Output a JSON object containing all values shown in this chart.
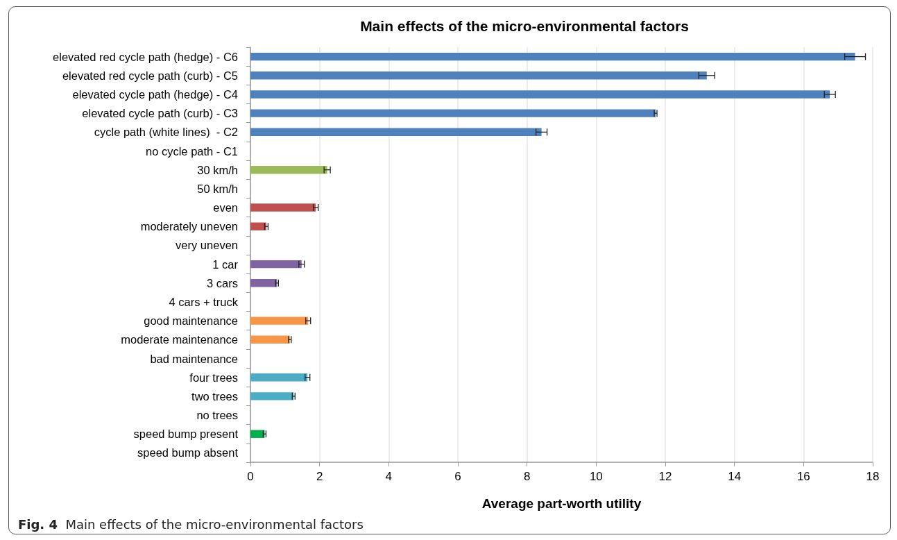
{
  "chart_data": {
    "type": "bar",
    "orientation": "horizontal",
    "title": "Main effects of the micro-environmental factors",
    "xlabel": "Average part-worth utility",
    "annotations": [
      "Fig. 4  Main effects of the micro-environmental factors"
    ],
    "categories": [
      "elevated red cycle path (hedge) - C6",
      "elevated red cycle path (curb) - C5",
      "elevated cycle path (hedge) - C4",
      "elevated cycle path (curb) - C3",
      "cycle path (white lines)  - C2",
      "no cycle path - C1",
      "30 km/h",
      "50 km/h",
      "even",
      "moderately uneven",
      "very uneven",
      "1 car",
      "3 cars",
      "4 cars + truck",
      "good maintenance",
      "moderate maintenance",
      "bad maintenance",
      "four trees",
      "two trees",
      "no trees",
      "speed bump present",
      "speed bump absent"
    ],
    "values": [
      17.49,
      13.2,
      16.76,
      11.72,
      8.42,
      0,
      2.22,
      0,
      1.89,
      0.46,
      0,
      1.48,
      0.77,
      0,
      1.67,
      1.14,
      0,
      1.65,
      1.25,
      0,
      0.41,
      0
    ],
    "errors": [
      0.3,
      0.23,
      0.16,
      0.04,
      0.16,
      null,
      0.09,
      null,
      0.07,
      0.05,
      null,
      0.08,
      0.04,
      null,
      0.07,
      0.04,
      null,
      0.07,
      0.04,
      null,
      0.04,
      null
    ],
    "colors": [
      "#4f81bd",
      "#4f81bd",
      "#4f81bd",
      "#4f81bd",
      "#4f81bd",
      "#4f81bd",
      "#9bbb59",
      "#9bbb59",
      "#c0504d",
      "#c0504d",
      "#c0504d",
      "#8064a2",
      "#8064a2",
      "#8064a2",
      "#f79646",
      "#f79646",
      "#f79646",
      "#4bacc6",
      "#4bacc6",
      "#4bacc6",
      "#00b050",
      "#00b050"
    ],
    "xlim": [
      0,
      18
    ],
    "xticks": [
      0,
      2,
      4,
      6,
      8,
      10,
      12,
      14,
      16,
      18
    ],
    "grid": "x"
  }
}
